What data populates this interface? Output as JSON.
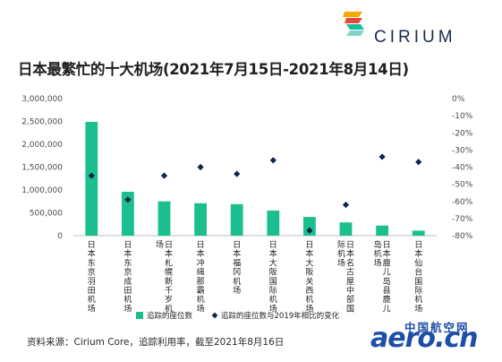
{
  "brand": {
    "name": "CIRIUM",
    "colors": [
      "#f2a900",
      "#e8473d",
      "#1abc9c",
      "#1b2b48"
    ]
  },
  "title": "日本最繁忙的十大机场(2021年7月15日-2021年8月14日)",
  "source": "资料来源：Cirium Core，追踪利用率，截至2021年8月16日",
  "watermark": {
    "top": "中国航空网",
    "main": "aero.cn",
    "color": "#1e4ea8"
  },
  "chart_data": {
    "type": "bar",
    "categories": [
      "日本东京羽田机场",
      "日本东京成田机场",
      "日本札幌新千岁机场",
      "日本冲绳那霸机场",
      "日本福冈机场",
      "日本大阪国际机场",
      "日本大阪关西机场",
      "日本名古屋中部国际机场",
      "日本鹿儿岛县鹿儿岛机场",
      "日本仙台国际机场"
    ],
    "series": [
      {
        "name": "追踪的座位数",
        "type": "bar",
        "axis": "left",
        "color": "#1bbf8d",
        "values": [
          2490000,
          960000,
          750000,
          710000,
          690000,
          550000,
          410000,
          290000,
          220000,
          110000
        ]
      },
      {
        "name": "追踪的座位数与2019年相比的变化",
        "type": "scatter",
        "marker": "diamond",
        "axis": "right",
        "color": "#0f2447",
        "values": [
          -45,
          -59,
          -45,
          -40,
          -44,
          -36,
          -77,
          -62,
          -34,
          -37
        ]
      }
    ],
    "ylim": [
      0,
      3000000
    ],
    "yticks": [
      "0",
      "500,000",
      "1,000,000",
      "1,500,000",
      "2,000,000",
      "2,500,000",
      "3,000,000"
    ],
    "y2lim": [
      -80,
      0
    ],
    "y2ticks": [
      "0%",
      "-10%",
      "-20%",
      "-30%",
      "-40%",
      "-50%",
      "-60%",
      "-70%",
      "-80%"
    ],
    "legend": "bottom",
    "grid": false
  }
}
